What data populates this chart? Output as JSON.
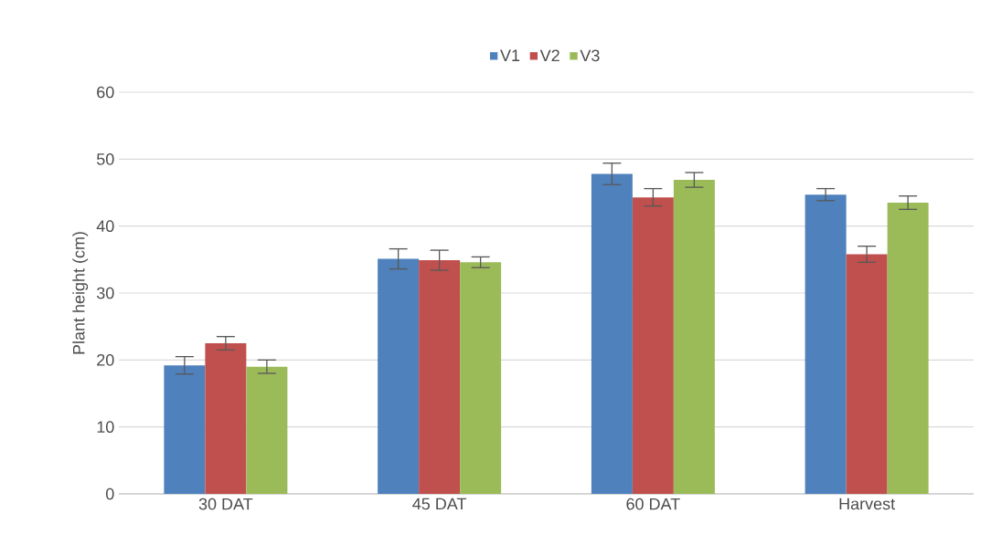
{
  "chart_data": {
    "type": "bar",
    "ylabel": "Plant height (cm)",
    "categories": [
      "30 DAT",
      "45 DAT",
      "60 DAT",
      "Harvest"
    ],
    "series": [
      {
        "name": "V1",
        "color": "#4f81bd",
        "values": [
          19.2,
          35.1,
          47.8,
          44.7
        ],
        "errors": [
          1.3,
          1.5,
          1.6,
          0.9
        ]
      },
      {
        "name": "V2",
        "color": "#c0504d",
        "values": [
          22.5,
          34.9,
          44.3,
          35.8
        ],
        "errors": [
          1.0,
          1.5,
          1.3,
          1.2
        ]
      },
      {
        "name": "V3",
        "color": "#9bbb59",
        "values": [
          19.0,
          34.6,
          46.9,
          43.5
        ],
        "errors": [
          1.0,
          0.8,
          1.1,
          1.0
        ]
      }
    ],
    "ylim": [
      0,
      60
    ],
    "yticks": [
      0,
      10,
      20,
      30,
      40,
      50,
      60
    ],
    "grid": "y",
    "legend": "top"
  }
}
